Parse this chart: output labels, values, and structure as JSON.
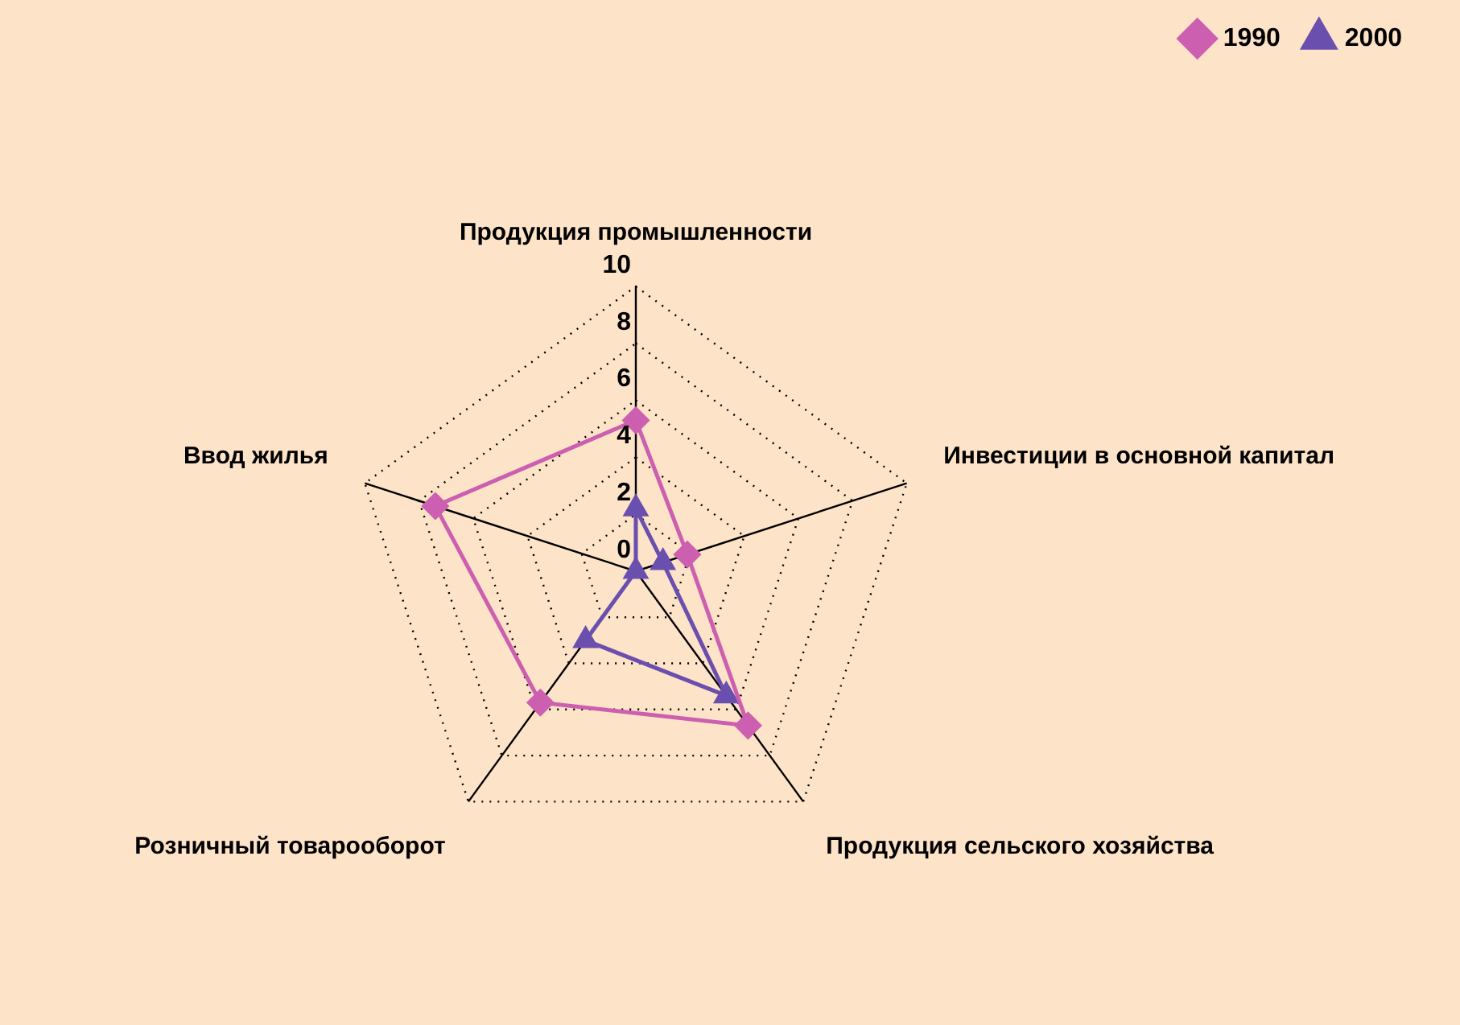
{
  "chart_data": {
    "type": "radar",
    "categories": [
      "Продукция промышленности",
      "Инвестиции в основной капитал",
      "Продукция сельского хозяйства",
      "Розничный товарооборот",
      "Ввод жилья"
    ],
    "series": [
      {
        "name": "1990",
        "color": "#cc5fb0",
        "marker": "diamond",
        "values": [
          5.3,
          1.9,
          6.7,
          5.7,
          7.4
        ]
      },
      {
        "name": "2000",
        "color": "#6a4fae",
        "marker": "triangle",
        "values": [
          2.2,
          1.0,
          5.4,
          3.0,
          0
        ]
      }
    ],
    "ylim": [
      0,
      10
    ],
    "yticks": [
      0,
      2,
      4,
      6,
      8,
      10
    ],
    "grid": true,
    "line_style": "dotted",
    "legend": "top right"
  }
}
